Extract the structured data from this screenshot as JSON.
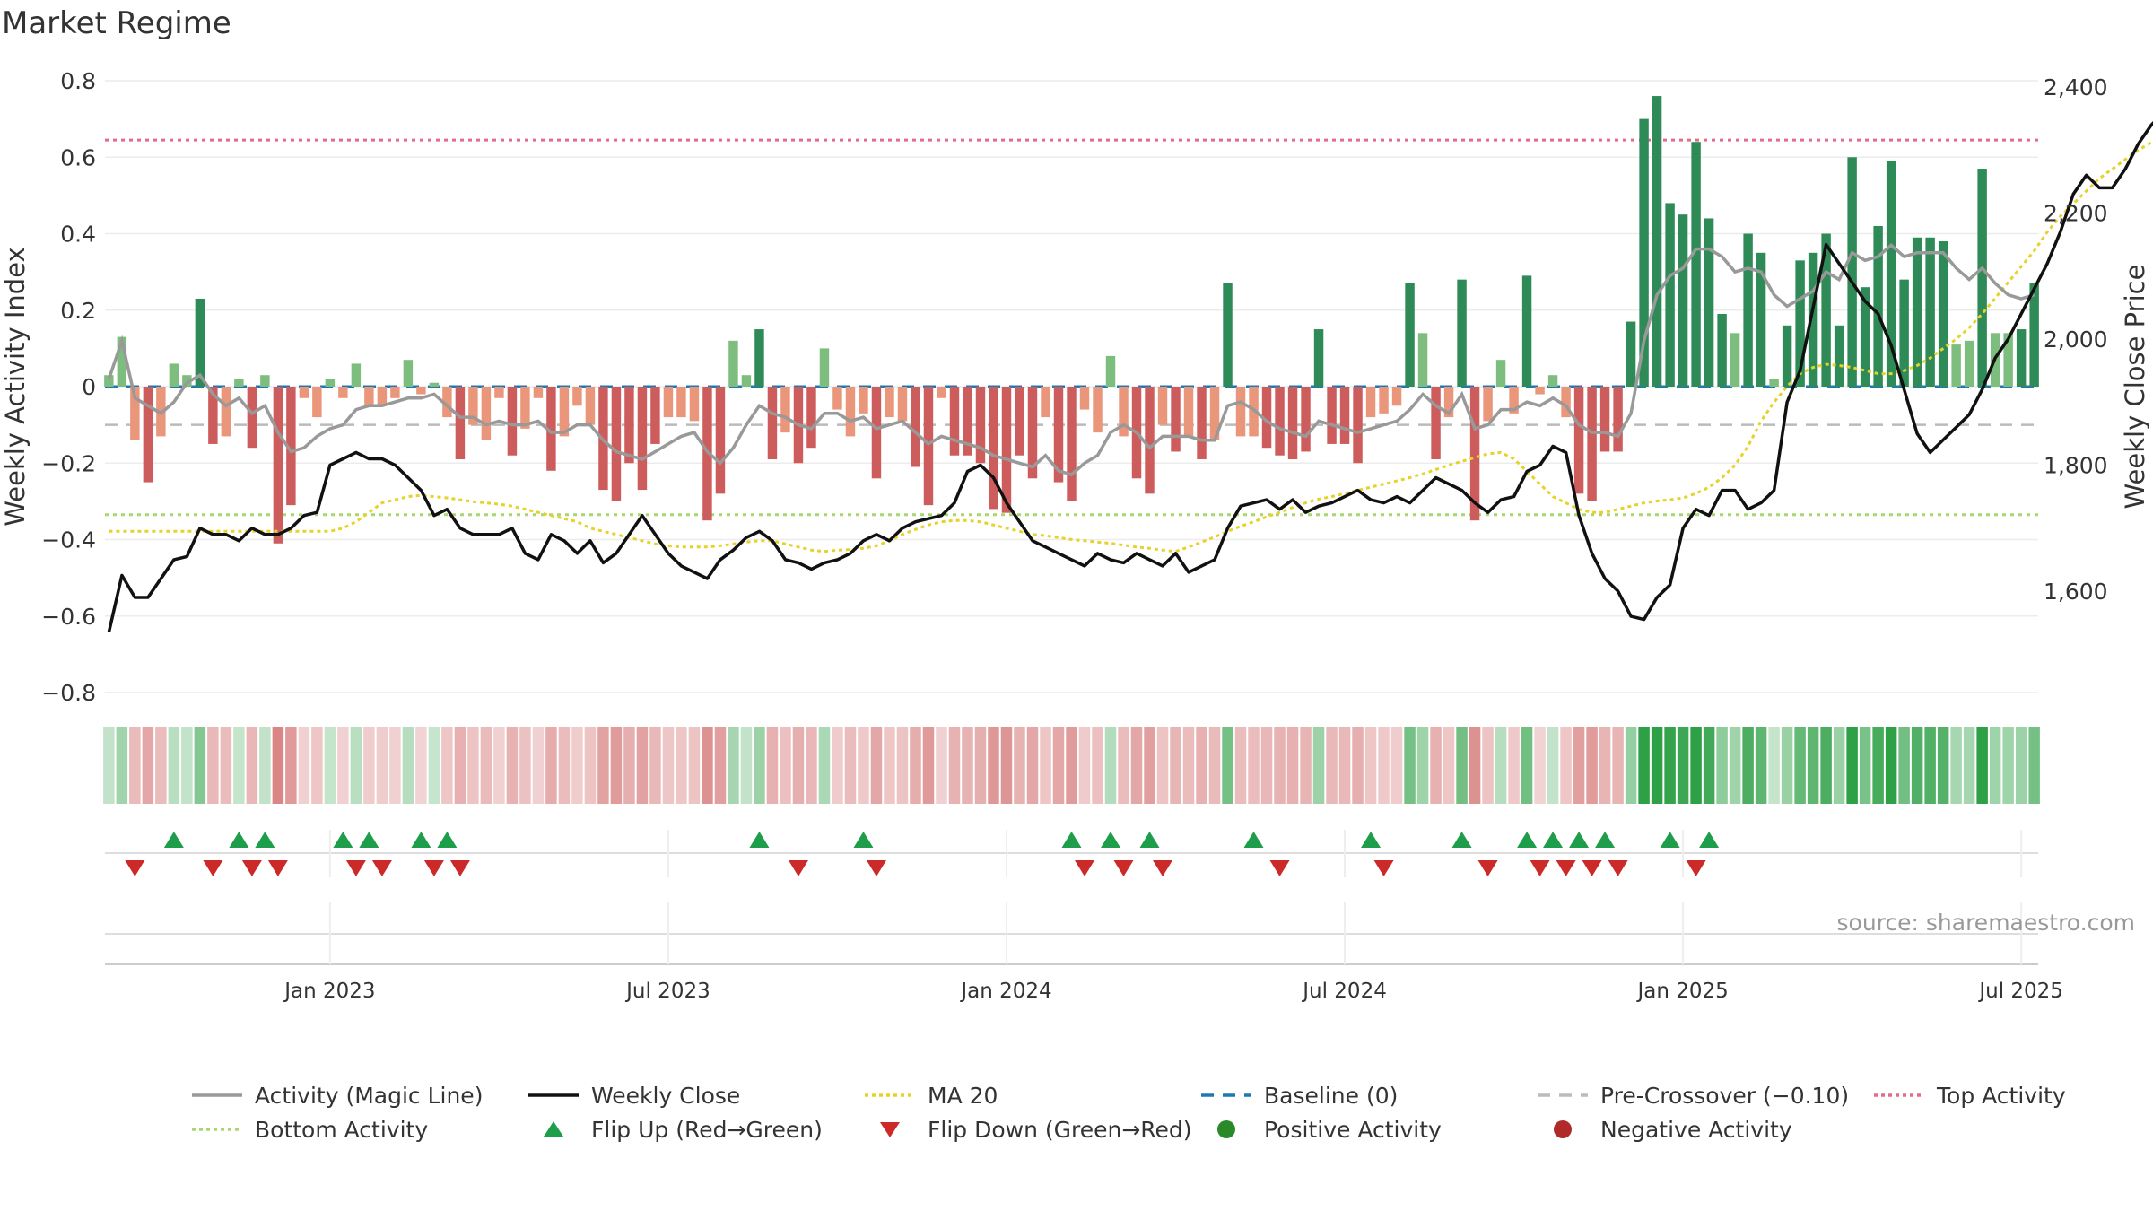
{
  "title": "Market Regime",
  "source": "source: sharemaestro.com",
  "colors": {
    "pos_strong": "#2e8b57",
    "pos_weak": "#7dbd7d",
    "neg_strong": "#cd5c5c",
    "neg_weak": "#e9967a",
    "magic": "#999999",
    "close": "#111111",
    "ma": "#e6d229",
    "baseline": "#1f77b4",
    "precross": "#bbbbbb",
    "top": "#e36b8c",
    "bottom": "#a8d66f",
    "flip_up": "#1e9e4a",
    "flip_down": "#cc2929"
  },
  "chart_data": {
    "type": "bar",
    "title": "Market Regime",
    "ylabel": "Weekly Activity Index",
    "y2label": "Weekly Close Price",
    "ylim": [
      -0.8,
      0.8
    ],
    "y2lim": [
      1450,
      2420
    ],
    "y_ticks": [
      "0.8",
      "0.6",
      "0.4",
      "0.2",
      "0",
      "−0.2",
      "−0.4",
      "−0.6",
      "−0.8"
    ],
    "y2_ticks": [
      "2,400",
      "2,200",
      "2,000",
      "1,800",
      "1,600"
    ],
    "x_ticks": [
      "Jan 2023",
      "Jul 2023",
      "Jan 2024",
      "Jul 2024",
      "Jan 2025",
      "Jul 2025"
    ],
    "x_tick_weeks": [
      17,
      43,
      69,
      95,
      121,
      147
    ],
    "top_activity": 0.645,
    "bottom_activity": -0.335,
    "pre_crossover": -0.1,
    "baseline": 0,
    "activity": [
      0.03,
      0.13,
      -0.14,
      -0.25,
      -0.13,
      0.06,
      0.03,
      0.23,
      -0.15,
      -0.13,
      0.02,
      -0.16,
      0.03,
      -0.41,
      -0.31,
      -0.03,
      -0.08,
      0.02,
      -0.03,
      0.06,
      -0.05,
      -0.05,
      -0.03,
      0.07,
      -0.02,
      0.01,
      -0.08,
      -0.19,
      -0.1,
      -0.14,
      -0.03,
      -0.18,
      -0.11,
      -0.03,
      -0.22,
      -0.13,
      -0.05,
      -0.1,
      -0.27,
      -0.3,
      -0.2,
      -0.27,
      -0.15,
      -0.08,
      -0.08,
      -0.09,
      -0.35,
      -0.28,
      0.12,
      0.03,
      0.15,
      -0.19,
      -0.12,
      -0.2,
      -0.16,
      0.1,
      -0.06,
      -0.13,
      -0.07,
      -0.24,
      -0.08,
      -0.09,
      -0.21,
      -0.31,
      -0.03,
      -0.18,
      -0.18,
      -0.2,
      -0.32,
      -0.33,
      -0.18,
      -0.24,
      -0.08,
      -0.25,
      -0.3,
      -0.06,
      -0.12,
      0.08,
      -0.13,
      -0.24,
      -0.28,
      -0.1,
      -0.17,
      -0.13,
      -0.19,
      -0.14,
      0.27,
      -0.13,
      -0.13,
      -0.16,
      -0.18,
      -0.19,
      -0.17,
      0.15,
      -0.15,
      -0.15,
      -0.2,
      -0.08,
      -0.07,
      -0.05,
      0.27,
      0.14,
      -0.19,
      -0.08,
      0.28,
      -0.35,
      -0.09,
      0.07,
      -0.07,
      0.29,
      -0.02,
      0.03,
      -0.08,
      -0.28,
      -0.3,
      -0.17,
      -0.17,
      0.17,
      0.7,
      0.76,
      0.48,
      0.45,
      0.64,
      0.44,
      0.19,
      0.14,
      0.4,
      0.35,
      0.02,
      0.16,
      0.33,
      0.35,
      0.4,
      0.16,
      0.6,
      0.26,
      0.42,
      0.59,
      0.28,
      0.39,
      0.39,
      0.38,
      0.11,
      0.12,
      0.57,
      0.14,
      0.14,
      0.15,
      0.27
    ],
    "magic_line": [
      0.02,
      0.12,
      -0.03,
      -0.05,
      -0.07,
      -0.04,
      0.01,
      0.03,
      -0.02,
      -0.05,
      -0.03,
      -0.07,
      -0.05,
      -0.12,
      -0.17,
      -0.16,
      -0.13,
      -0.11,
      -0.1,
      -0.06,
      -0.05,
      -0.05,
      -0.04,
      -0.03,
      -0.03,
      -0.02,
      -0.05,
      -0.08,
      -0.08,
      -0.1,
      -0.09,
      -0.1,
      -0.1,
      -0.09,
      -0.12,
      -0.12,
      -0.1,
      -0.1,
      -0.14,
      -0.17,
      -0.18,
      -0.19,
      -0.17,
      -0.15,
      -0.13,
      -0.12,
      -0.17,
      -0.2,
      -0.16,
      -0.1,
      -0.05,
      -0.07,
      -0.08,
      -0.1,
      -0.11,
      -0.07,
      -0.07,
      -0.09,
      -0.08,
      -0.11,
      -0.1,
      -0.09,
      -0.12,
      -0.15,
      -0.13,
      -0.14,
      -0.15,
      -0.16,
      -0.18,
      -0.19,
      -0.2,
      -0.21,
      -0.18,
      -0.22,
      -0.23,
      -0.2,
      -0.18,
      -0.12,
      -0.1,
      -0.12,
      -0.16,
      -0.13,
      -0.13,
      -0.13,
      -0.14,
      -0.14,
      -0.05,
      -0.04,
      -0.06,
      -0.09,
      -0.11,
      -0.12,
      -0.13,
      -0.09,
      -0.1,
      -0.11,
      -0.12,
      -0.11,
      -0.1,
      -0.09,
      -0.06,
      -0.02,
      -0.05,
      -0.07,
      -0.02,
      -0.11,
      -0.1,
      -0.06,
      -0.06,
      -0.04,
      -0.05,
      -0.03,
      -0.05,
      -0.1,
      -0.12,
      -0.12,
      -0.13,
      -0.07,
      0.12,
      0.24,
      0.29,
      0.31,
      0.36,
      0.36,
      0.34,
      0.3,
      0.31,
      0.3,
      0.24,
      0.21,
      0.23,
      0.25,
      0.3,
      0.28,
      0.35,
      0.33,
      0.34,
      0.37,
      0.34,
      0.35,
      0.35,
      0.35,
      0.31,
      0.28,
      0.31,
      0.27,
      0.24,
      0.23,
      0.24
    ],
    "weekly_close": [
      1535,
      1625,
      1590,
      1590,
      1620,
      1650,
      1655,
      1700,
      1690,
      1690,
      1680,
      1700,
      1690,
      1690,
      1700,
      1720,
      1725,
      1800,
      1810,
      1820,
      1810,
      1810,
      1800,
      1780,
      1760,
      1720,
      1730,
      1700,
      1690,
      1690,
      1690,
      1700,
      1660,
      1650,
      1690,
      1680,
      1660,
      1680,
      1645,
      1660,
      1690,
      1720,
      1690,
      1660,
      1640,
      1630,
      1620,
      1650,
      1665,
      1685,
      1695,
      1680,
      1650,
      1645,
      1635,
      1645,
      1650,
      1660,
      1680,
      1690,
      1680,
      1700,
      1710,
      1715,
      1720,
      1740,
      1790,
      1800,
      1780,
      1740,
      1710,
      1680,
      1670,
      1660,
      1650,
      1640,
      1660,
      1650,
      1645,
      1660,
      1650,
      1640,
      1660,
      1630,
      1640,
      1650,
      1700,
      1735,
      1740,
      1745,
      1730,
      1745,
      1725,
      1735,
      1740,
      1750,
      1760,
      1745,
      1740,
      1750,
      1740,
      1760,
      1780,
      1770,
      1760,
      1740,
      1725,
      1745,
      1750,
      1790,
      1800,
      1830,
      1820,
      1720,
      1660,
      1620,
      1600,
      1560,
      1555,
      1590,
      1610,
      1700,
      1730,
      1720,
      1760,
      1760,
      1730,
      1740,
      1760,
      1900,
      1950,
      2050,
      2150,
      2120,
      2090,
      2060,
      2040,
      1990,
      1920,
      1850,
      1820,
      1840,
      1860,
      1880,
      1920,
      1970,
      2000,
      2040,
      2080,
      2120,
      2170,
      2230,
      2260,
      2240,
      2240,
      2270,
      2310,
      2340,
      2360,
      2340,
      2350,
      2370,
      2360,
      2380,
      2370
    ],
    "ma20": [
      1695,
      1695,
      1695,
      1695,
      1695,
      1695,
      1695,
      1695,
      1695,
      1695,
      1695,
      1695,
      1695,
      1695,
      1695,
      1695,
      1695,
      1695,
      1700,
      1710,
      1725,
      1740,
      1745,
      1750,
      1752,
      1750,
      1748,
      1745,
      1742,
      1740,
      1738,
      1735,
      1730,
      1725,
      1720,
      1715,
      1710,
      1700,
      1695,
      1690,
      1685,
      1680,
      1675,
      1672,
      1670,
      1670,
      1670,
      1672,
      1675,
      1678,
      1680,
      1680,
      1675,
      1670,
      1665,
      1663,
      1665,
      1666,
      1668,
      1672,
      1680,
      1690,
      1698,
      1705,
      1710,
      1712,
      1712,
      1710,
      1705,
      1700,
      1695,
      1690,
      1688,
      1685,
      1682,
      1680,
      1678,
      1676,
      1673,
      1670,
      1668,
      1665,
      1663,
      1670,
      1678,
      1686,
      1695,
      1703,
      1710,
      1718,
      1725,
      1733,
      1740,
      1746,
      1750,
      1755,
      1760,
      1765,
      1770,
      1775,
      1780,
      1786,
      1793,
      1800,
      1806,
      1812,
      1818,
      1820,
      1810,
      1790,
      1770,
      1750,
      1740,
      1730,
      1725,
      1725,
      1730,
      1735,
      1740,
      1743,
      1745,
      1748,
      1755,
      1765,
      1780,
      1800,
      1830,
      1870,
      1900,
      1925,
      1945,
      1955,
      1960,
      1958,
      1955,
      1950,
      1945,
      1945,
      1950,
      1958,
      1970,
      1985,
      2000,
      2018,
      2040,
      2065,
      2090,
      2115,
      2140,
      2170,
      2195,
      2215,
      2235,
      2255,
      2270,
      2285,
      2300,
      2312,
      2320
    ],
    "flip_up_weeks": [
      5,
      10,
      12,
      18,
      20,
      24,
      26,
      50,
      58,
      74,
      77,
      80,
      88,
      97,
      104,
      109,
      111,
      113,
      115,
      120,
      123
    ],
    "flip_down_weeks": [
      2,
      8,
      11,
      13,
      19,
      21,
      25,
      27,
      53,
      59,
      75,
      78,
      81,
      90,
      98,
      106,
      110,
      112,
      114,
      116,
      122
    ],
    "legend": [
      {
        "label": "Activity (Magic Line)",
        "style": "solid",
        "color": "#999999"
      },
      {
        "label": "Weekly Close",
        "style": "solid",
        "color": "#111111"
      },
      {
        "label": "MA 20",
        "style": "dotted",
        "color": "#e6d229"
      },
      {
        "label": "Baseline (0)",
        "style": "dashed",
        "color": "#1f77b4"
      },
      {
        "label": "Pre-Crossover (−0.10)",
        "style": "dashed",
        "color": "#bbbbbb"
      },
      {
        "label": "Top Activity",
        "style": "dotted",
        "color": "#e36b8c"
      },
      {
        "label": "Bottom Activity",
        "style": "dotted",
        "color": "#a8d66f"
      },
      {
        "label": "Flip Up (Red→Green)",
        "style": "tri-up",
        "color": "#1e9e4a"
      },
      {
        "label": "Flip Down (Green→Red)",
        "style": "tri-down",
        "color": "#cc2929"
      },
      {
        "label": "Positive Activity",
        "style": "dot",
        "color": "#2a8a2a"
      },
      {
        "label": "Negative Activity",
        "style": "dot",
        "color": "#b02a2a"
      }
    ]
  }
}
